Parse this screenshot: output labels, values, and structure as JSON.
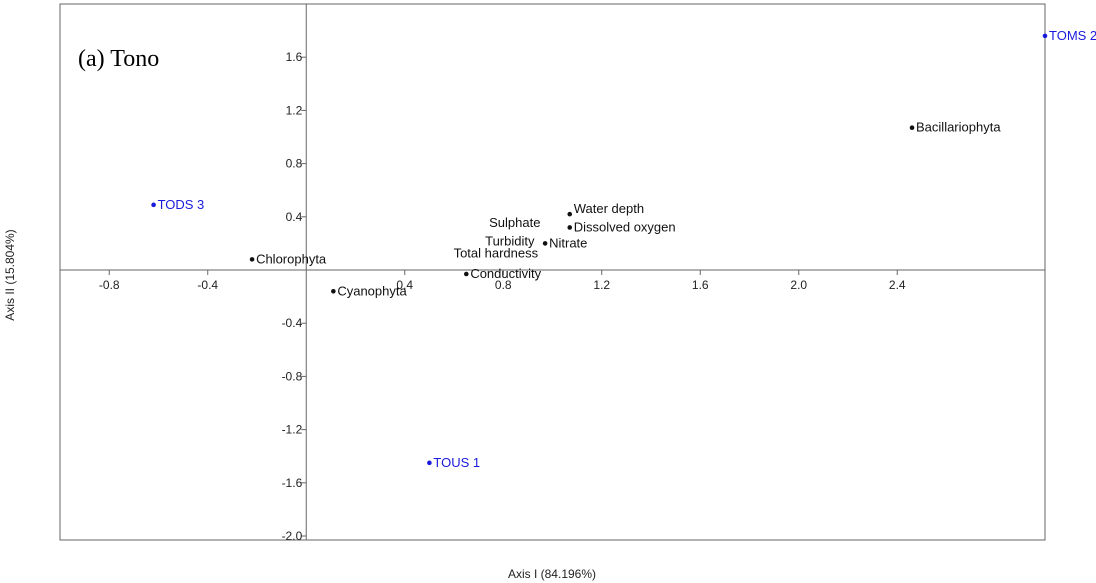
{
  "chart_data": {
    "type": "scatter",
    "title": "(a) Tono",
    "xlabel": "Axis I (84.196%)",
    "ylabel": "Axis II (15.804%)",
    "xlim": [
      -1.0,
      3.0
    ],
    "ylim": [
      -2.03,
      2.0
    ],
    "x_ticks": [
      {
        "value": -0.8,
        "label": "-0.8"
      },
      {
        "value": -0.4,
        "label": "-0.4"
      },
      {
        "value": 0.4,
        "label": "0.4"
      },
      {
        "value": 0.8,
        "label": "0.8"
      },
      {
        "value": 1.2,
        "label": "1.2"
      },
      {
        "value": 1.6,
        "label": "1.6"
      },
      {
        "value": 2.0,
        "label": "2.0"
      },
      {
        "value": 2.4,
        "label": "2.4"
      }
    ],
    "y_ticks": [
      {
        "value": 1.6,
        "label": "1.6"
      },
      {
        "value": 1.2,
        "label": "1.2"
      },
      {
        "value": 0.8,
        "label": "0.8"
      },
      {
        "value": 0.4,
        "label": "0.4"
      },
      {
        "value": -0.4,
        "label": "-0.4"
      },
      {
        "value": -0.8,
        "label": "-0.8"
      },
      {
        "value": -1.2,
        "label": "-1.2"
      },
      {
        "value": -1.6,
        "label": "-1.6"
      },
      {
        "value": -2.0,
        "label": "-2.0"
      }
    ],
    "grid": false,
    "colors": {
      "variables": "#111111",
      "sites": "#1a1adb"
    },
    "series": [
      {
        "name": "",
        "kind": "variables",
        "points": [
          {
            "label": "Bacillariophyta",
            "x": 2.46,
            "y": 1.07,
            "anchor": "right"
          },
          {
            "label": "Chlorophyta",
            "x": -0.22,
            "y": 0.08,
            "anchor": "right"
          },
          {
            "label": "Cyanophyta",
            "x": 0.11,
            "y": -0.16,
            "anchor": "right"
          },
          {
            "label": "Water depth",
            "x": 1.07,
            "y": 0.42,
            "anchor": "right-up"
          },
          {
            "label": "Dissolved oxygen",
            "x": 1.07,
            "y": 0.32,
            "anchor": "right"
          },
          {
            "label": "Sulphate",
            "x": 0.97,
            "y": 0.24,
            "anchor": "label-only-sulphate"
          },
          {
            "label": "Turbidity",
            "x": 0.97,
            "y": 0.23,
            "anchor": "label-only-turbidity"
          },
          {
            "label": "Nitrate",
            "x": 0.97,
            "y": 0.2,
            "anchor": "right"
          },
          {
            "label": "Total hardness",
            "x": 0.98,
            "y": 0.22,
            "anchor": "label-only-hardness"
          },
          {
            "label": "Conductivity",
            "x": 0.65,
            "y": -0.03,
            "anchor": "right"
          }
        ]
      },
      {
        "name": "",
        "kind": "sites",
        "points": [
          {
            "label": "TOMS 2",
            "x": 3.0,
            "y": 1.76,
            "anchor": "right"
          },
          {
            "label": "TODS 3",
            "x": -0.62,
            "y": 0.49,
            "anchor": "right"
          },
          {
            "label": "TOUS 1",
            "x": 0.5,
            "y": -1.45,
            "anchor": "right"
          }
        ]
      }
    ]
  }
}
